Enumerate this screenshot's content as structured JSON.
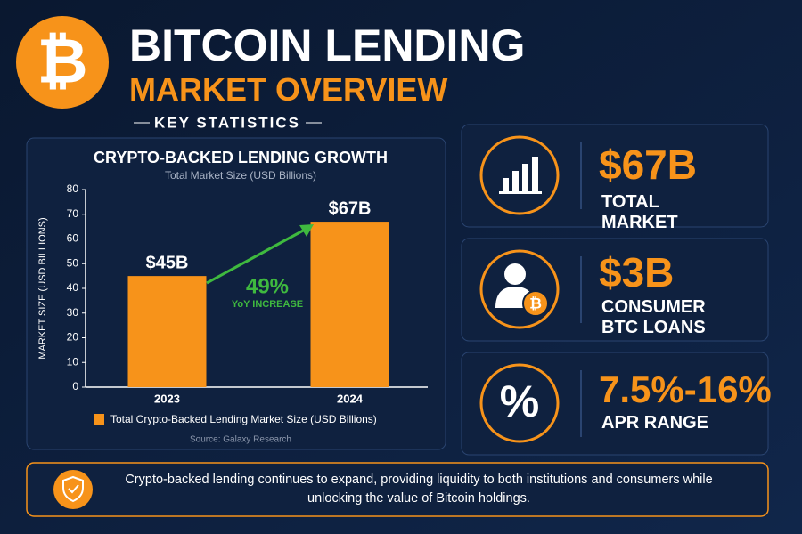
{
  "header": {
    "logo": "₿",
    "title": "BITCOIN LENDING",
    "subtitle": "MARKET OVERVIEW",
    "section": "KEY STATISTICS"
  },
  "chart_data": {
    "type": "bar",
    "title": "CRYPTO-BACKED LENDING GROWTH",
    "subtitle": "Total Market Size (USD Billions)",
    "y_label": "MARKET SIZE (USD BILLIONS)",
    "categories": [
      "2023",
      "2024"
    ],
    "series": [
      {
        "name": "Total Crypto-Backed Lending Market Size (USD Billions)",
        "color": "#f7931a",
        "values": [
          45,
          67
        ],
        "value_labels": [
          "$45B",
          "$67B"
        ]
      }
    ],
    "ylim": [
      0,
      80
    ],
    "yticks": [
      0,
      10,
      20,
      30,
      40,
      50,
      60,
      70,
      80
    ],
    "grid": false,
    "annotations": [
      "49%",
      "YoY INCREASE"
    ],
    "source": "Source: Galaxy Research"
  },
  "stats": [
    {
      "value": "$67B",
      "label": "TOTAL MARKET"
    },
    {
      "value": "$3B",
      "label": "CONSUMER BTC LOANS"
    },
    {
      "icon": "%",
      "value": "7.5%-16%",
      "label": "APR RANGE"
    }
  ],
  "footer": {
    "text": "Crypto-backed lending continues to expand, providing liquidity to both institutions and consumers while unlocking the value of Bitcoin holdings."
  }
}
